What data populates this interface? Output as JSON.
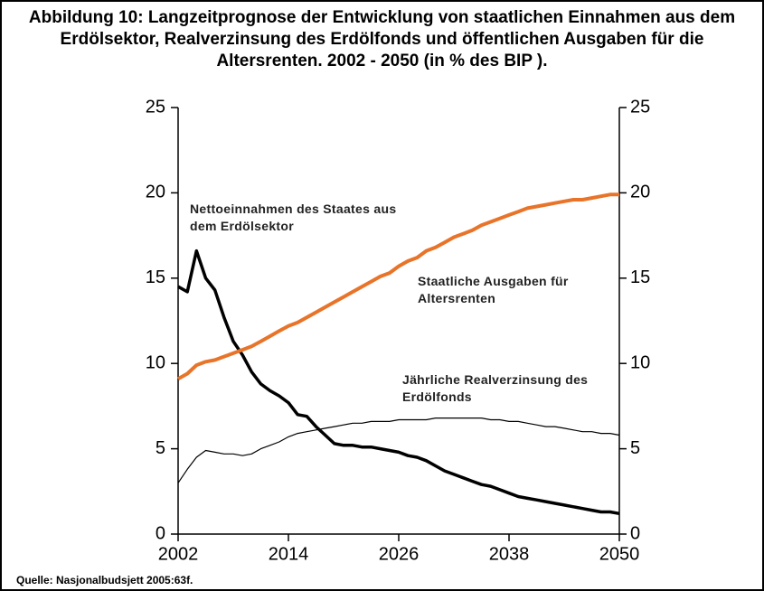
{
  "chart_data": {
    "type": "line",
    "title": "Abbildung 10: Langzeitprognose der Entwicklung von staatlichen Einnahmen aus dem Erdölsektor, Realverzinsung des Erdölfonds und öffentlichen Ausgaben für die Altersrenten. 2002 - 2050 (in % des BIP ).",
    "source": "Quelle: Nasjonalbudsjett 2005:63f.",
    "x": [
      2002,
      2003,
      2004,
      2005,
      2006,
      2007,
      2008,
      2009,
      2010,
      2011,
      2012,
      2013,
      2014,
      2015,
      2016,
      2017,
      2018,
      2019,
      2020,
      2021,
      2022,
      2023,
      2024,
      2025,
      2026,
      2027,
      2028,
      2029,
      2030,
      2031,
      2032,
      2033,
      2034,
      2035,
      2036,
      2037,
      2038,
      2039,
      2040,
      2041,
      2042,
      2043,
      2044,
      2045,
      2046,
      2047,
      2048,
      2049,
      2050
    ],
    "xlim": [
      2002,
      2050
    ],
    "xticks": [
      2002,
      2014,
      2026,
      2038,
      2050
    ],
    "ylim": [
      0,
      25
    ],
    "yticks": [
      0,
      5,
      10,
      15,
      20,
      25
    ],
    "y2lim": [
      0,
      25
    ],
    "y2ticks": [
      0,
      5,
      10,
      15,
      20,
      25
    ],
    "series": [
      {
        "name": "Nettoeinnahmen des Staates aus dem Erdölsektor",
        "color": "#000000",
        "values": [
          14.5,
          14.2,
          16.6,
          15.0,
          14.3,
          12.7,
          11.3,
          10.5,
          9.5,
          8.8,
          8.4,
          8.1,
          7.7,
          7.0,
          6.9,
          6.3,
          5.8,
          5.3,
          5.2,
          5.2,
          5.1,
          5.1,
          5.0,
          4.9,
          4.8,
          4.6,
          4.5,
          4.3,
          4.0,
          3.7,
          3.5,
          3.3,
          3.1,
          2.9,
          2.8,
          2.6,
          2.4,
          2.2,
          2.1,
          2.0,
          1.9,
          1.8,
          1.7,
          1.6,
          1.5,
          1.4,
          1.3,
          1.3,
          1.2
        ]
      },
      {
        "name": "Staatliche Ausgaben für Altersrenten",
        "color": "#e8742a",
        "values": [
          9.1,
          9.4,
          9.9,
          10.1,
          10.2,
          10.4,
          10.6,
          10.8,
          11.0,
          11.3,
          11.6,
          11.9,
          12.2,
          12.4,
          12.7,
          13.0,
          13.3,
          13.6,
          13.9,
          14.2,
          14.5,
          14.8,
          15.1,
          15.3,
          15.7,
          16.0,
          16.2,
          16.6,
          16.8,
          17.1,
          17.4,
          17.6,
          17.8,
          18.1,
          18.3,
          18.5,
          18.7,
          18.9,
          19.1,
          19.2,
          19.3,
          19.4,
          19.5,
          19.6,
          19.6,
          19.7,
          19.8,
          19.9,
          19.9
        ]
      },
      {
        "name": "Jährliche Realverzinsung des Erdölfonds",
        "color": "#000000",
        "values": [
          3.0,
          3.8,
          4.5,
          4.9,
          4.8,
          4.7,
          4.7,
          4.6,
          4.7,
          5.0,
          5.2,
          5.4,
          5.7,
          5.9,
          6.0,
          6.1,
          6.2,
          6.3,
          6.4,
          6.5,
          6.5,
          6.6,
          6.6,
          6.6,
          6.7,
          6.7,
          6.7,
          6.7,
          6.8,
          6.8,
          6.8,
          6.8,
          6.8,
          6.8,
          6.7,
          6.7,
          6.6,
          6.6,
          6.5,
          6.4,
          6.3,
          6.3,
          6.2,
          6.1,
          6.0,
          6.0,
          5.9,
          5.9,
          5.8
        ]
      }
    ]
  }
}
